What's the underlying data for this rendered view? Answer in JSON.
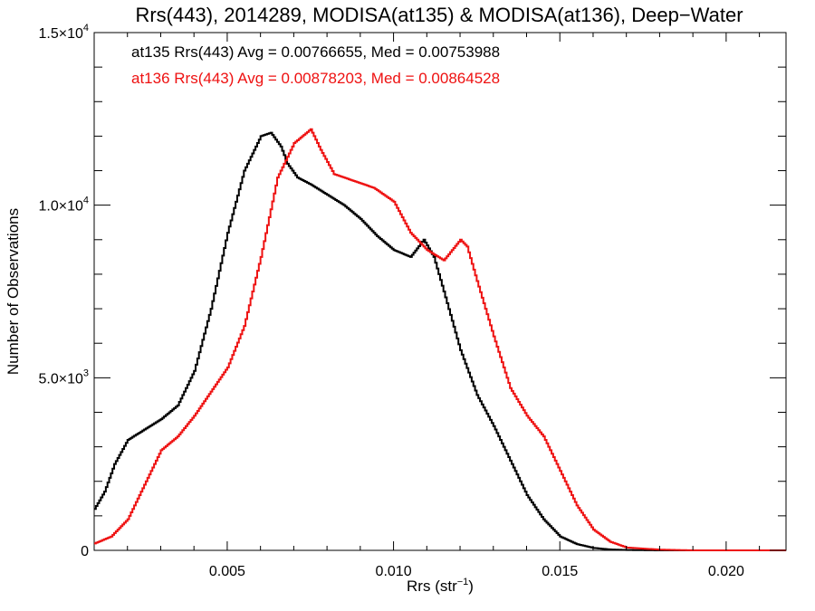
{
  "chart_data": {
    "type": "line",
    "title": "Rrs(443), 2014289, MODISA(at135) & MODISA(at136), Deep−Water",
    "xlabel": "Rrs (str",
    "xlabel_sup": "−1",
    "xlabel_end": ")",
    "ylabel": "Number of Observations",
    "xlim": [
      0.001,
      0.0218
    ],
    "ylim": [
      0,
      15000
    ],
    "grid": false,
    "x_ticks": [
      {
        "value": 0.005,
        "label": "0.005"
      },
      {
        "value": 0.01,
        "label": "0.010"
      },
      {
        "value": 0.015,
        "label": "0.015"
      },
      {
        "value": 0.02,
        "label": "0.020"
      }
    ],
    "y_ticks": [
      {
        "value": 0,
        "base": "0",
        "exp": ""
      },
      {
        "value": 5000,
        "base": "5.0×10",
        "exp": "3"
      },
      {
        "value": 10000,
        "base": "1.0×10",
        "exp": "4"
      },
      {
        "value": 15000,
        "base": "1.5×10",
        "exp": "4"
      }
    ],
    "annotations": [
      {
        "text": "at135 Rrs(443) Avg = 0.00766655, Med = 0.00753988",
        "color": "#000000"
      },
      {
        "text": "at136 Rrs(443) Avg = 0.00878203, Med = 0.00864528",
        "color": "#ee1111"
      }
    ],
    "series": [
      {
        "color": "#000000",
        "points": [
          [
            0.001,
            1200
          ],
          [
            0.0013,
            1700
          ],
          [
            0.0016,
            2500
          ],
          [
            0.002,
            3200
          ],
          [
            0.0025,
            3500
          ],
          [
            0.003,
            3800
          ],
          [
            0.0035,
            4200
          ],
          [
            0.004,
            5200
          ],
          [
            0.0045,
            7000
          ],
          [
            0.005,
            9200
          ],
          [
            0.0055,
            11000
          ],
          [
            0.006,
            12000
          ],
          [
            0.0063,
            12100
          ],
          [
            0.0066,
            11700
          ],
          [
            0.0068,
            11200
          ],
          [
            0.0071,
            10800
          ],
          [
            0.0075,
            10600
          ],
          [
            0.008,
            10300
          ],
          [
            0.0085,
            10000
          ],
          [
            0.009,
            9600
          ],
          [
            0.0095,
            9100
          ],
          [
            0.01,
            8700
          ],
          [
            0.0105,
            8500
          ],
          [
            0.0109,
            9000
          ],
          [
            0.0112,
            8500
          ],
          [
            0.0115,
            7500
          ],
          [
            0.012,
            5800
          ],
          [
            0.0125,
            4500
          ],
          [
            0.013,
            3600
          ],
          [
            0.0135,
            2600
          ],
          [
            0.014,
            1600
          ],
          [
            0.0145,
            900
          ],
          [
            0.015,
            400
          ],
          [
            0.0155,
            180
          ],
          [
            0.016,
            70
          ],
          [
            0.0165,
            25
          ],
          [
            0.017,
            10
          ],
          [
            0.018,
            0
          ],
          [
            0.0218,
            0
          ]
        ]
      },
      {
        "color": "#ee1111",
        "points": [
          [
            0.001,
            200
          ],
          [
            0.0015,
            400
          ],
          [
            0.002,
            900
          ],
          [
            0.0025,
            1900
          ],
          [
            0.003,
            2900
          ],
          [
            0.0035,
            3300
          ],
          [
            0.004,
            3900
          ],
          [
            0.0045,
            4600
          ],
          [
            0.005,
            5300
          ],
          [
            0.0055,
            6500
          ],
          [
            0.006,
            8500
          ],
          [
            0.0065,
            10800
          ],
          [
            0.007,
            11800
          ],
          [
            0.0075,
            12200
          ],
          [
            0.0078,
            11600
          ],
          [
            0.0082,
            10900
          ],
          [
            0.0088,
            10700
          ],
          [
            0.0094,
            10500
          ],
          [
            0.01,
            10100
          ],
          [
            0.0105,
            9200
          ],
          [
            0.011,
            8700
          ],
          [
            0.0115,
            8400
          ],
          [
            0.012,
            9000
          ],
          [
            0.0122,
            8800
          ],
          [
            0.0125,
            7800
          ],
          [
            0.013,
            6200
          ],
          [
            0.0135,
            4700
          ],
          [
            0.014,
            3900
          ],
          [
            0.0145,
            3300
          ],
          [
            0.015,
            2300
          ],
          [
            0.0155,
            1300
          ],
          [
            0.016,
            600
          ],
          [
            0.0165,
            250
          ],
          [
            0.017,
            80
          ],
          [
            0.018,
            20
          ],
          [
            0.019,
            0
          ],
          [
            0.0218,
            0
          ]
        ]
      }
    ]
  }
}
